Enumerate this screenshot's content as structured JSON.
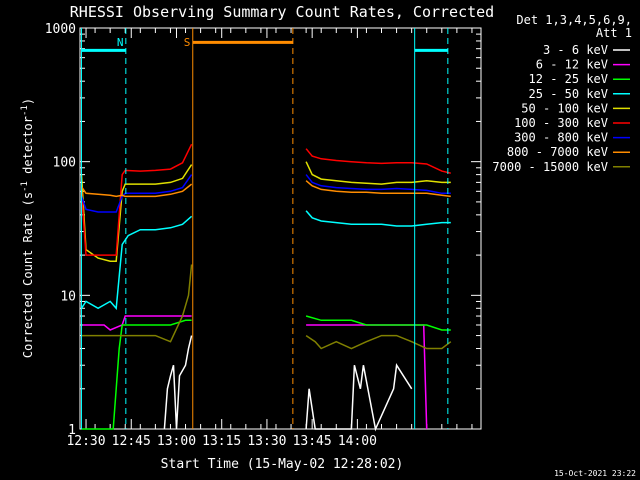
{
  "chart_data": {
    "type": "line",
    "title": "RHESSI Observing Summary Count Rates, Corrected",
    "xlabel": "Start Time (15-May-02 12:28:02)",
    "ylabel": "Corrected Count Rate (s⁻¹ detector⁻¹)",
    "ylabel_parts": {
      "main": "Corrected Count Rate (s",
      "sup1": "-1",
      "mid": " detector",
      "sup2": "-1",
      "end": ")"
    },
    "y_scale": "log",
    "ylim": [
      1,
      1000
    ],
    "y_ticks": [
      {
        "v": 1,
        "label": "1"
      },
      {
        "v": 10,
        "label": "10"
      },
      {
        "v": 100,
        "label": "100"
      },
      {
        "v": 1000,
        "label": "1000"
      }
    ],
    "xlim_min": [
      0,
      133
    ],
    "x_ticks": [
      {
        "min": 2,
        "label": "12:30"
      },
      {
        "min": 17,
        "label": "12:45"
      },
      {
        "min": 32,
        "label": "13:00"
      },
      {
        "min": 47,
        "label": "13:15"
      },
      {
        "min": 62,
        "label": "13:30"
      },
      {
        "min": 77,
        "label": "13:45"
      },
      {
        "min": 92,
        "label": "14:00"
      }
    ],
    "legend_header": [
      "Det 1,3,4,5,6,9,",
      "Att 1"
    ],
    "legend_placement": "right",
    "footer": "15-Oct-2021 23:22",
    "grid": false,
    "markers": [
      {
        "x_min": 0.5,
        "x_end": 15.2,
        "style": "solid",
        "color": "#00ffff",
        "label": "",
        "bar_y": 680
      },
      {
        "x_min": 15.2,
        "style": "dashed",
        "color": "#00ffff",
        "label": "N"
      },
      {
        "x_min": 37.4,
        "x_end": 70.6,
        "style": "solid",
        "color": "#ff8c00",
        "label": "S",
        "bar_y": 780
      },
      {
        "x_min": 70.6,
        "style": "dashed",
        "color": "#ff8c00",
        "label": ""
      },
      {
        "x_min": 111,
        "x_end": 122,
        "style": "solid",
        "color": "#00ffff",
        "label": "",
        "bar_y": 680
      },
      {
        "x_min": 122,
        "style": "dashed",
        "color": "#00ffff",
        "label": ""
      }
    ],
    "series": [
      {
        "name": "3 - 6 keV",
        "color": "#ffffff",
        "segments": [
          [
            [
              28,
              1
            ],
            [
              29,
              2
            ],
            [
              30,
              2.5
            ],
            [
              31,
              3
            ],
            [
              32,
              1
            ],
            [
              33,
              2.5
            ],
            [
              35,
              3
            ],
            [
              36,
              4
            ],
            [
              37,
              5
            ]
          ],
          [
            [
              75,
              1
            ],
            [
              76,
              2
            ],
            [
              78,
              1
            ],
            [
              90,
              1
            ],
            [
              91,
              3
            ],
            [
              93,
              2
            ],
            [
              94,
              3
            ],
            [
              98,
              1
            ],
            [
              104,
              2
            ],
            [
              105,
              3
            ],
            [
              110,
              2
            ]
          ]
        ]
      },
      {
        "name": "6 - 12 keV",
        "color": "#ff00ff",
        "segments": [
          [
            [
              1,
              6
            ],
            [
              4,
              6
            ],
            [
              8,
              6
            ],
            [
              10,
              5.5
            ],
            [
              14,
              6
            ],
            [
              15,
              7
            ],
            [
              20,
              7
            ],
            [
              25,
              7
            ],
            [
              30,
              7
            ],
            [
              35,
              7
            ],
            [
              37,
              7
            ]
          ],
          [
            [
              75,
              6
            ],
            [
              80,
              6
            ],
            [
              85,
              6
            ],
            [
              95,
              6
            ],
            [
              105,
              6
            ],
            [
              110,
              6
            ],
            [
              113,
              6
            ],
            [
              114,
              6
            ],
            [
              115,
              1
            ]
          ]
        ]
      },
      {
        "name": "12 - 25 keV",
        "color": "#00ff00",
        "segments": [
          [
            [
              0.5,
              1
            ],
            [
              2,
              1
            ],
            [
              11,
              1
            ],
            [
              13,
              4
            ],
            [
              14,
              6
            ],
            [
              15,
              6
            ],
            [
              20,
              6
            ],
            [
              25,
              6
            ],
            [
              30,
              6
            ],
            [
              35,
              6.5
            ],
            [
              37,
              6.5
            ]
          ],
          [
            [
              75,
              7
            ],
            [
              80,
              6.5
            ],
            [
              85,
              6.5
            ],
            [
              90,
              6.5
            ],
            [
              95,
              6
            ],
            [
              100,
              6
            ],
            [
              105,
              6
            ],
            [
              110,
              6
            ],
            [
              115,
              6
            ],
            [
              120,
              5.5
            ],
            [
              123,
              5.5
            ]
          ]
        ]
      },
      {
        "name": "25 - 50 keV",
        "color": "#00ffff",
        "segments": [
          [
            [
              0.5,
              8
            ],
            [
              2,
              9
            ],
            [
              6,
              8
            ],
            [
              10,
              9
            ],
            [
              12,
              8
            ],
            [
              14,
              24
            ],
            [
              16,
              28
            ],
            [
              20,
              31
            ],
            [
              25,
              31
            ],
            [
              30,
              32
            ],
            [
              34,
              34
            ],
            [
              37,
              39
            ]
          ],
          [
            [
              75,
              43
            ],
            [
              77,
              38
            ],
            [
              80,
              36
            ],
            [
              85,
              35
            ],
            [
              90,
              34
            ],
            [
              95,
              34
            ],
            [
              100,
              34
            ],
            [
              105,
              33
            ],
            [
              110,
              33
            ],
            [
              115,
              34
            ],
            [
              120,
              35
            ],
            [
              123,
              35
            ]
          ]
        ]
      },
      {
        "name": "50 - 100 keV",
        "color": "#e0e000",
        "segments": [
          [
            [
              0.5,
              80
            ],
            [
              2,
              22
            ],
            [
              6,
              19
            ],
            [
              10,
              18
            ],
            [
              12,
              18
            ],
            [
              14,
              60
            ],
            [
              15,
              68
            ],
            [
              20,
              68
            ],
            [
              25,
              68
            ],
            [
              30,
              70
            ],
            [
              34,
              75
            ],
            [
              37,
              95
            ]
          ],
          [
            [
              75,
              100
            ],
            [
              77,
              80
            ],
            [
              80,
              74
            ],
            [
              85,
              72
            ],
            [
              90,
              70
            ],
            [
              95,
              69
            ],
            [
              100,
              68
            ],
            [
              105,
              70
            ],
            [
              110,
              70
            ],
            [
              115,
              72
            ],
            [
              120,
              70
            ],
            [
              123,
              70
            ]
          ]
        ]
      },
      {
        "name": "100 - 300 keV",
        "color": "#ff0000",
        "segments": [
          [
            [
              0.5,
              60
            ],
            [
              2,
              20
            ],
            [
              6,
              20
            ],
            [
              10,
              20
            ],
            [
              12,
              20
            ],
            [
              14,
              80
            ],
            [
              15,
              86
            ],
            [
              20,
              85
            ],
            [
              25,
              86
            ],
            [
              30,
              88
            ],
            [
              34,
              98
            ],
            [
              37,
              135
            ]
          ],
          [
            [
              75,
              125
            ],
            [
              77,
              110
            ],
            [
              80,
              105
            ],
            [
              85,
              102
            ],
            [
              90,
              100
            ],
            [
              95,
              98
            ],
            [
              100,
              97
            ],
            [
              105,
              98
            ],
            [
              110,
              98
            ],
            [
              115,
              96
            ],
            [
              120,
              85
            ],
            [
              123,
              82
            ]
          ]
        ]
      },
      {
        "name": "300 - 800 keV",
        "color": "#0000ff",
        "segments": [
          [
            [
              0.5,
              55
            ],
            [
              2,
              44
            ],
            [
              6,
              42
            ],
            [
              10,
              42
            ],
            [
              12,
              42
            ],
            [
              14,
              55
            ],
            [
              15,
              58
            ],
            [
              20,
              58
            ],
            [
              25,
              58
            ],
            [
              30,
              60
            ],
            [
              34,
              64
            ],
            [
              37,
              80
            ]
          ],
          [
            [
              75,
              80
            ],
            [
              77,
              70
            ],
            [
              80,
              66
            ],
            [
              85,
              64
            ],
            [
              90,
              63
            ],
            [
              95,
              62
            ],
            [
              100,
              62
            ],
            [
              105,
              63
            ],
            [
              110,
              62
            ],
            [
              115,
              61
            ],
            [
              120,
              58
            ],
            [
              123,
              58
            ]
          ]
        ]
      },
      {
        "name": "800 - 7000 keV",
        "color": "#ff8c00",
        "segments": [
          [
            [
              0.5,
              65
            ],
            [
              2,
              58
            ],
            [
              6,
              57
            ],
            [
              10,
              56
            ],
            [
              12,
              55
            ],
            [
              14,
              56
            ],
            [
              15,
              55
            ],
            [
              20,
              55
            ],
            [
              25,
              55
            ],
            [
              30,
              57
            ],
            [
              34,
              60
            ],
            [
              37,
              68
            ]
          ],
          [
            [
              75,
              72
            ],
            [
              77,
              66
            ],
            [
              80,
              62
            ],
            [
              85,
              60
            ],
            [
              90,
              59
            ],
            [
              95,
              59
            ],
            [
              100,
              58
            ],
            [
              105,
              58
            ],
            [
              110,
              58
            ],
            [
              115,
              58
            ],
            [
              120,
              56
            ],
            [
              123,
              55
            ]
          ]
        ]
      },
      {
        "name": "7000 - 15000 keV",
        "color": "#808000",
        "segments": [
          [
            [
              0.5,
              5
            ],
            [
              4,
              5
            ],
            [
              8,
              5
            ],
            [
              12,
              5
            ],
            [
              14,
              5
            ],
            [
              15,
              5
            ],
            [
              20,
              5
            ],
            [
              25,
              5
            ],
            [
              30,
              4.5
            ],
            [
              34,
              7
            ],
            [
              36,
              10
            ],
            [
              37,
              17
            ]
          ],
          [
            [
              75,
              5
            ],
            [
              78,
              4.5
            ],
            [
              80,
              4
            ],
            [
              85,
              4.5
            ],
            [
              90,
              4
            ],
            [
              95,
              4.5
            ],
            [
              100,
              5
            ],
            [
              105,
              5
            ],
            [
              110,
              4.5
            ],
            [
              115,
              4
            ],
            [
              120,
              4
            ],
            [
              123,
              4.5
            ]
          ]
        ]
      }
    ]
  }
}
